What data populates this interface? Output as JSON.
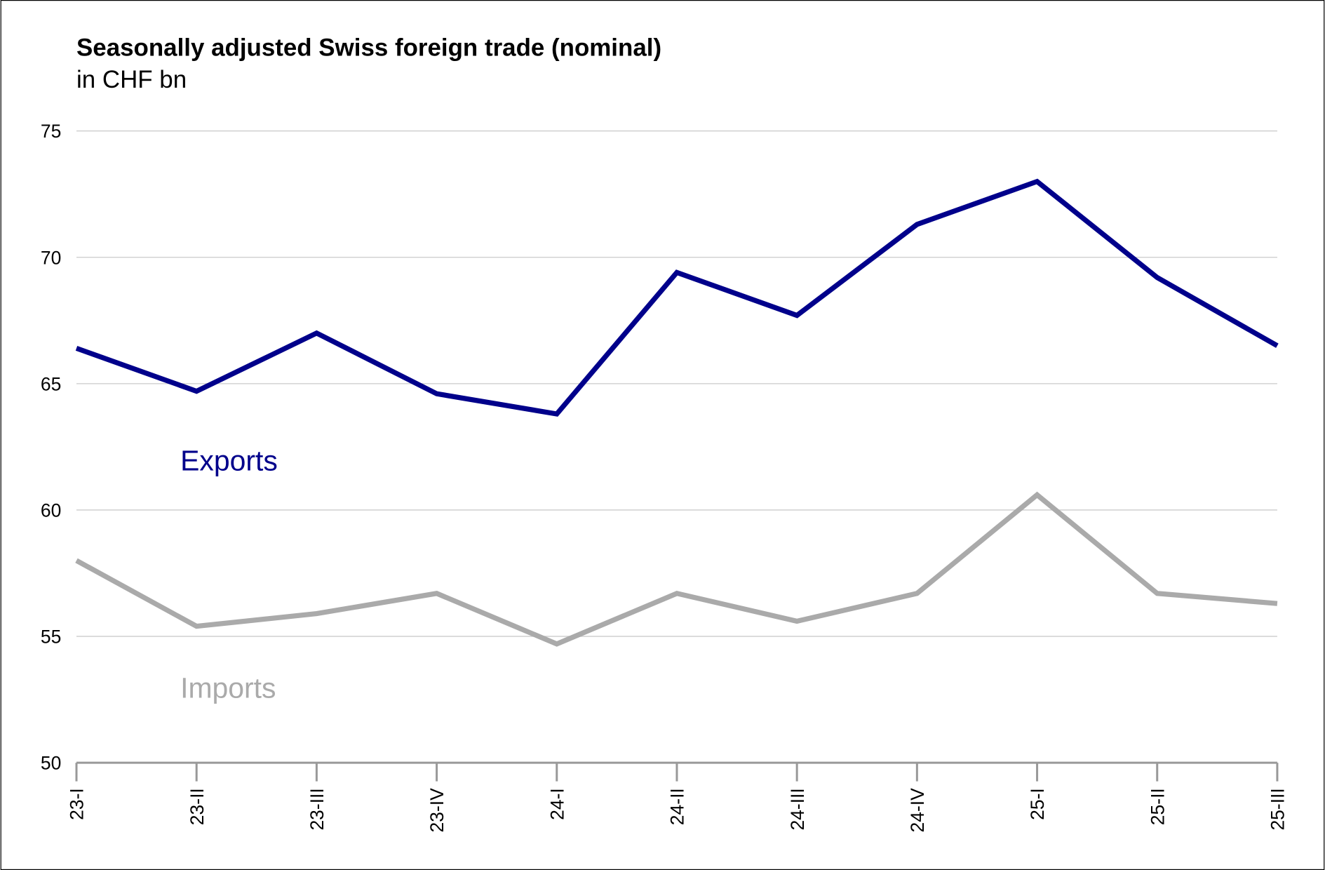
{
  "chart_data": {
    "type": "line",
    "title": "Seasonally adjusted Swiss foreign trade (nominal)",
    "subtitle": "in CHF bn",
    "xlabel": "",
    "ylabel": "",
    "categories": [
      "23-I",
      "23-II",
      "23-III",
      "23-IV",
      "24-I",
      "24-II",
      "24-III",
      "24-IV",
      "25-I",
      "25-II",
      "25-III"
    ],
    "ylim": [
      50,
      75
    ],
    "yticks": [
      50,
      55,
      60,
      65,
      70,
      75
    ],
    "grid": true,
    "legend": "inline labels",
    "series": [
      {
        "name": "Exports",
        "color": "#00008b",
        "values": [
          66.4,
          64.7,
          67.0,
          64.6,
          63.8,
          69.4,
          67.7,
          71.3,
          73.0,
          69.2,
          66.5
        ]
      },
      {
        "name": "Imports",
        "color": "#aaaaaa",
        "values": [
          58.0,
          55.4,
          55.9,
          56.7,
          54.7,
          56.7,
          55.6,
          56.7,
          60.6,
          56.7,
          56.3
        ]
      }
    ]
  }
}
